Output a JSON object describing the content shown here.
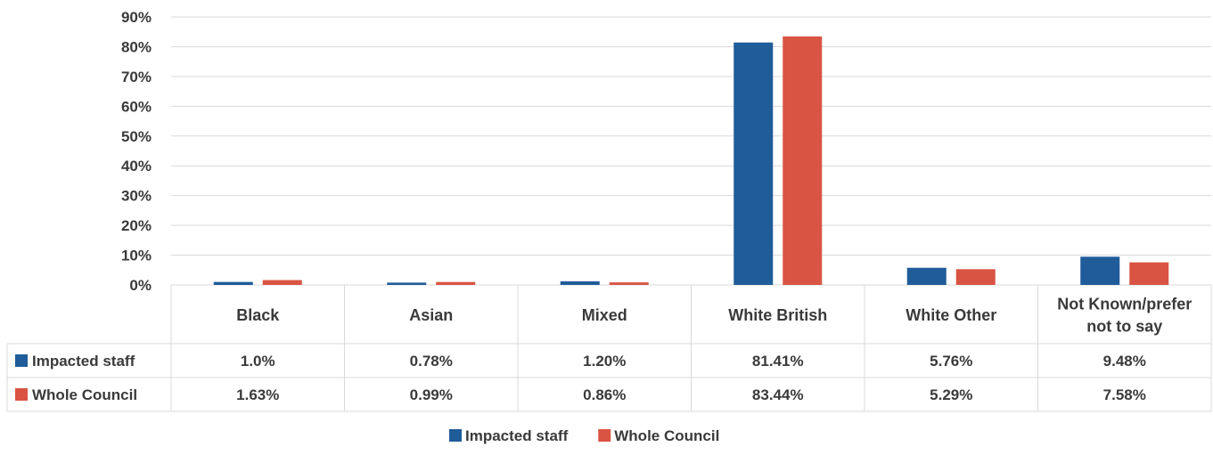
{
  "chart_data": {
    "type": "bar",
    "title": "",
    "xlabel": "",
    "ylabel": "",
    "ylim": [
      0,
      90
    ],
    "yticks": [
      "0%",
      "10%",
      "20%",
      "30%",
      "40%",
      "50%",
      "60%",
      "70%",
      "80%",
      "90%"
    ],
    "grid": true,
    "legend": "bottom",
    "categories": [
      [
        "Black"
      ],
      [
        "Asian"
      ],
      [
        "Mixed"
      ],
      [
        "White British"
      ],
      [
        "White Other"
      ],
      [
        "Not Known/prefer",
        "not to say"
      ]
    ],
    "series": [
      {
        "name": "Impacted staff",
        "color": "#1f5c99",
        "values": [
          1.0,
          0.78,
          1.2,
          81.41,
          5.76,
          9.48
        ],
        "labels": [
          "1.0%",
          "0.78%",
          "1.20%",
          "81.41%",
          "5.76%",
          "9.48%"
        ]
      },
      {
        "name": "Whole Council",
        "color": "#d95443",
        "values": [
          1.63,
          0.99,
          0.86,
          83.44,
          5.29,
          7.58
        ],
        "labels": [
          "1.63%",
          "0.99%",
          "0.86%",
          "83.44%",
          "5.29%",
          "7.58%"
        ]
      }
    ]
  }
}
